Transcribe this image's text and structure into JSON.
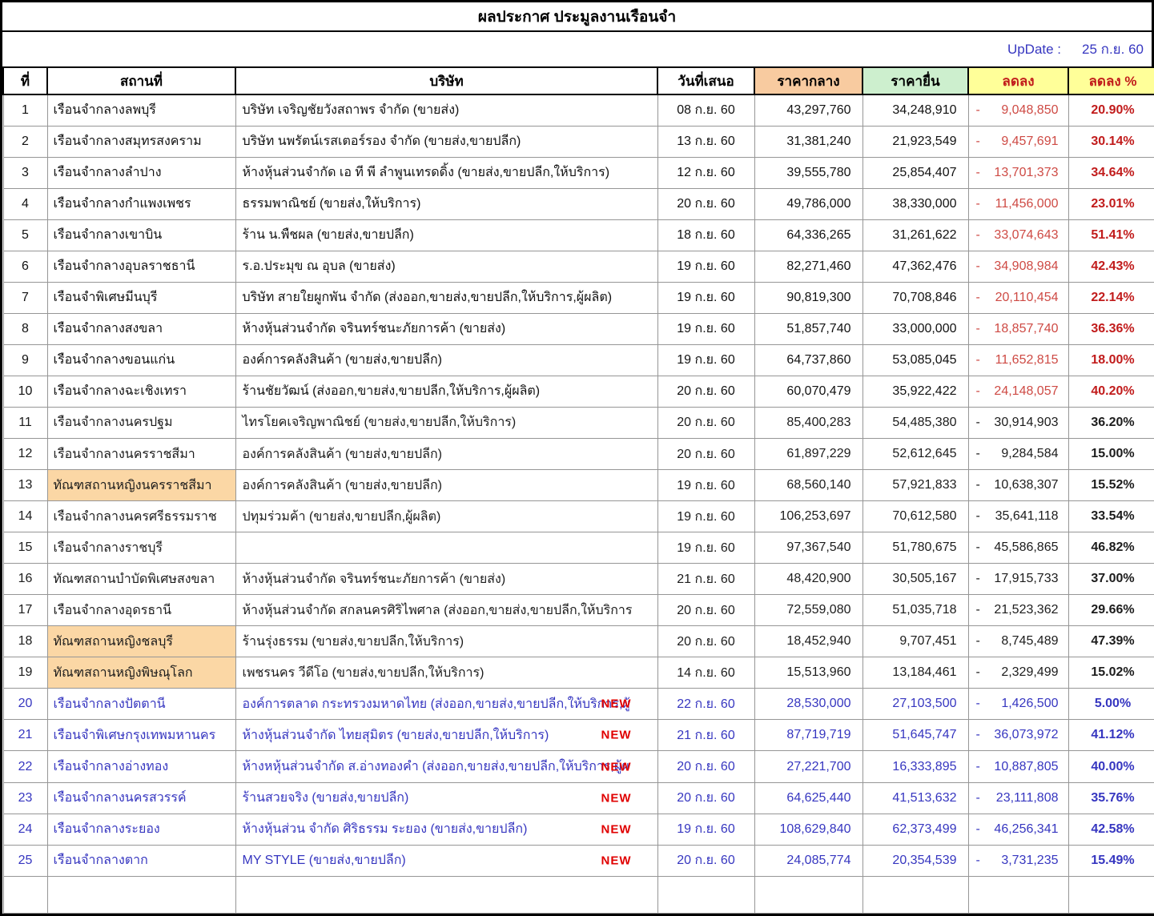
{
  "title": "ผลประกาศ ประมูลงานเรือนจำ",
  "update": {
    "label": "UpDate :",
    "value": "25 ก.ย. 60"
  },
  "labels": {
    "new_badge": "NEW"
  },
  "columns": [
    "ที่",
    "สถานที่",
    "บริษัท",
    "วันที่เสนอ",
    "ราคากลาง",
    "ราคายื่น",
    "ลดลง",
    "ลดลง %"
  ],
  "colors": {
    "mid-header-bg": "#F8CBA0",
    "bid-header-bg": "#CDEFCE",
    "dec-header-bg": "#FFFF99",
    "highlight-bg": "#FBD7A5",
    "red-val": "#CE4A44",
    "red-pct": "#C11B1B",
    "blue-text": "#3636C0",
    "new-red": "#E00000"
  },
  "rows": [
    {
      "no": "1",
      "place": "เรือนจำกลางลพบุรี",
      "highlight": false,
      "company": "บริษัท เจริญชัยวังสถาพร จำกัด (ขายส่ง)",
      "new": false,
      "date": "08 ก.ย. 60",
      "mid": "43,297,760",
      "bid": "34,248,910",
      "dash": "-",
      "dec": "9,048,850",
      "pct": "20.90%",
      "style": "red"
    },
    {
      "no": "2",
      "place": "เรือนจำกลางสมุทรสงคราม",
      "highlight": false,
      "company": "บริษัท นพรัตน์เรสเตอร์รอง จำกัด (ขายส่ง,ขายปลีก)",
      "new": false,
      "date": "13 ก.ย. 60",
      "mid": "31,381,240",
      "bid": "21,923,549",
      "dash": "-",
      "dec": "9,457,691",
      "pct": "30.14%",
      "style": "red"
    },
    {
      "no": "3",
      "place": "เรือนจำกลางลำปาง",
      "highlight": false,
      "company": "ห้างหุ้นส่วนจำกัด เอ ที พี ลำพูนเทรดดิ้ง (ขายส่ง,ขายปลีก,ให้บริการ)",
      "new": false,
      "date": "12 ก.ย. 60",
      "mid": "39,555,780",
      "bid": "25,854,407",
      "dash": "-",
      "dec": "13,701,373",
      "pct": "34.64%",
      "style": "red"
    },
    {
      "no": "4",
      "place": "เรือนจำกลางกำแพงเพชร",
      "highlight": false,
      "company": "ธรรมพาณิชย์ (ขายส่ง,ให้บริการ)",
      "new": false,
      "date": "20 ก.ย. 60",
      "mid": "49,786,000",
      "bid": "38,330,000",
      "dash": "-",
      "dec": "11,456,000",
      "pct": "23.01%",
      "style": "red"
    },
    {
      "no": "5",
      "place": "เรือนจำกลางเขาบิน",
      "highlight": false,
      "company": "ร้าน น.พืชผล (ขายส่ง,ขายปลีก)",
      "new": false,
      "date": "18 ก.ย. 60",
      "mid": "64,336,265",
      "bid": "31,261,622",
      "dash": "-",
      "dec": "33,074,643",
      "pct": "51.41%",
      "style": "red"
    },
    {
      "no": "6",
      "place": "เรือนจำกลางอุบลราชธานี",
      "highlight": false,
      "company": "ร.อ.ประมุข ณ อุบล (ขายส่ง)",
      "new": false,
      "date": "19 ก.ย. 60",
      "mid": "82,271,460",
      "bid": "47,362,476",
      "dash": "-",
      "dec": "34,908,984",
      "pct": "42.43%",
      "style": "red"
    },
    {
      "no": "7",
      "place": "เรือนจำพิเศษมีนบุรี",
      "highlight": false,
      "company": "บริษัท สายใยผูกพัน จำกัด (ส่งออก,ขายส่ง,ขายปลีก,ให้บริการ,ผู้ผลิต)",
      "new": false,
      "date": "19 ก.ย. 60",
      "mid": "90,819,300",
      "bid": "70,708,846",
      "dash": "-",
      "dec": "20,110,454",
      "pct": "22.14%",
      "style": "red"
    },
    {
      "no": "8",
      "place": "เรือนจำกลางสงขลา",
      "highlight": false,
      "company": "ห้างหุ้นส่วนจำกัด จรินทร์ชนะภัยการค้า (ขายส่ง)",
      "new": false,
      "date": "19 ก.ย. 60",
      "mid": "51,857,740",
      "bid": "33,000,000",
      "dash": "-",
      "dec": "18,857,740",
      "pct": "36.36%",
      "style": "red"
    },
    {
      "no": "9",
      "place": "เรือนจำกลางขอนแก่น",
      "highlight": false,
      "company": "องค์การคลังสินค้า (ขายส่ง,ขายปลีก)",
      "new": false,
      "date": "19 ก.ย. 60",
      "mid": "64,737,860",
      "bid": "53,085,045",
      "dash": "-",
      "dec": "11,652,815",
      "pct": "18.00%",
      "style": "red"
    },
    {
      "no": "10",
      "place": "เรือนจำกลางฉะเชิงเทรา",
      "highlight": false,
      "company": "ร้านชัยวัฒน์ (ส่งออก,ขายส่ง,ขายปลีก,ให้บริการ,ผู้ผลิต)",
      "new": false,
      "date": "20 ก.ย. 60",
      "mid": "60,070,479",
      "bid": "35,922,422",
      "dash": "-",
      "dec": "24,148,057",
      "pct": "40.20%",
      "style": "red"
    },
    {
      "no": "11",
      "place": "เรือนจำกลางนครปฐม",
      "highlight": false,
      "company": "ไทรโยคเจริญพาณิชย์ (ขายส่ง,ขายปลีก,ให้บริการ)",
      "new": false,
      "date": "20 ก.ย. 60",
      "mid": "85,400,283",
      "bid": "54,485,380",
      "dash": "-",
      "dec": "30,914,903",
      "pct": "36.20%",
      "style": "black"
    },
    {
      "no": "12",
      "place": "เรือนจำกลางนครราชสีมา",
      "highlight": false,
      "company": "องค์การคลังสินค้า (ขายส่ง,ขายปลีก)",
      "new": false,
      "date": "20 ก.ย. 60",
      "mid": "61,897,229",
      "bid": "52,612,645",
      "dash": "-",
      "dec": "9,284,584",
      "pct": "15.00%",
      "style": "black"
    },
    {
      "no": "13",
      "place": "ทัณฑสถานหญิงนครราชสีมา",
      "highlight": true,
      "company": "องค์การคลังสินค้า (ขายส่ง,ขายปลีก)",
      "new": false,
      "date": "19 ก.ย. 60",
      "mid": "68,560,140",
      "bid": "57,921,833",
      "dash": "-",
      "dec": "10,638,307",
      "pct": "15.52%",
      "style": "black"
    },
    {
      "no": "14",
      "place": "เรือนจำกลางนครศรีธรรมราช",
      "highlight": false,
      "company": "ปทุมร่วมค้า (ขายส่ง,ขายปลีก,ผู้ผลิต)",
      "new": false,
      "date": "19 ก.ย. 60",
      "mid": "106,253,697",
      "bid": "70,612,580",
      "dash": "-",
      "dec": "35,641,118",
      "pct": "33.54%",
      "style": "black"
    },
    {
      "no": "15",
      "place": "เรือนจำกลางราชบุรี",
      "highlight": false,
      "company": "",
      "new": false,
      "date": "19 ก.ย. 60",
      "mid": "97,367,540",
      "bid": "51,780,675",
      "dash": "-",
      "dec": "45,586,865",
      "pct": "46.82%",
      "style": "black"
    },
    {
      "no": "16",
      "place": "ทัณฑสถานบำบัดพิเศษสงขลา",
      "highlight": false,
      "company": "ห้างหุ้นส่วนจำกัด จรินทร์ชนะภัยการค้า (ขายส่ง)",
      "new": false,
      "date": "21 ก.ย. 60",
      "mid": "48,420,900",
      "bid": "30,505,167",
      "dash": "-",
      "dec": "17,915,733",
      "pct": "37.00%",
      "style": "black"
    },
    {
      "no": "17",
      "place": "เรือนจำกลางอุดรธานี",
      "highlight": false,
      "company": "ห้างหุ้นส่วนจำกัด สกลนครศิริไพศาล (ส่งออก,ขายส่ง,ขายปลีก,ให้บริการ",
      "new": false,
      "date": "20 ก.ย. 60",
      "mid": "72,559,080",
      "bid": "51,035,718",
      "dash": "-",
      "dec": "21,523,362",
      "pct": "29.66%",
      "style": "black"
    },
    {
      "no": "18",
      "place": "ทัณฑสถานหญิงชลบุรี",
      "highlight": true,
      "company": "ร้านรุ่งธรรม (ขายส่ง,ขายปลีก,ให้บริการ)",
      "new": false,
      "date": "20 ก.ย. 60",
      "mid": "18,452,940",
      "bid": "9,707,451",
      "dash": "-",
      "dec": "8,745,489",
      "pct": "47.39%",
      "style": "black"
    },
    {
      "no": "19",
      "place": "ทัณฑสถานหญิงพิษณุโลก",
      "highlight": true,
      "company": "เพชรนคร วีดีโอ (ขายส่ง,ขายปลีก,ให้บริการ)",
      "new": false,
      "date": "14 ก.ย. 60",
      "mid": "15,513,960",
      "bid": "13,184,461",
      "dash": "-",
      "dec": "2,329,499",
      "pct": "15.02%",
      "style": "black"
    },
    {
      "no": "20",
      "place": "เรือนจำกลางปัตตานี",
      "highlight": false,
      "company": "องค์การตลาด กระทรวงมหาดไทย (ส่งออก,ขายส่ง,ขายปลีก,ให้บริการ,ผู้",
      "new": true,
      "date": "22 ก.ย. 60",
      "mid": "28,530,000",
      "bid": "27,103,500",
      "dash": "-",
      "dec": "1,426,500",
      "pct": "5.00%",
      "style": "blue"
    },
    {
      "no": "21",
      "place": "เรือนจำพิเศษกรุงเทพมหานคร",
      "highlight": false,
      "company": "ห้างหุ้นส่วนจำกัด ไทยสุมิตร (ขายส่ง,ขายปลีก,ให้บริการ)",
      "new": true,
      "date": "21 ก.ย. 60",
      "mid": "87,719,719",
      "bid": "51,645,747",
      "dash": "-",
      "dec": "36,073,972",
      "pct": "41.12%",
      "style": "blue"
    },
    {
      "no": "22",
      "place": "เรือนจำกลางอ่างทอง",
      "highlight": false,
      "company": "ห้างหหุ้นส่วนจำกัด ส.อ่างทองคำ (ส่งออก,ขายส่ง,ขายปลีก,ให้บริการ,ผู้ผ",
      "new": true,
      "date": "20 ก.ย. 60",
      "mid": "27,221,700",
      "bid": "16,333,895",
      "dash": "-",
      "dec": "10,887,805",
      "pct": "40.00%",
      "style": "blue"
    },
    {
      "no": "23",
      "place": "เรือนจำกลางนครสวรรค์",
      "highlight": false,
      "company": "ร้านสวยจริง (ขายส่ง,ขายปลีก)",
      "new": true,
      "date": "20 ก.ย. 60",
      "mid": "64,625,440",
      "bid": "41,513,632",
      "dash": "-",
      "dec": "23,111,808",
      "pct": "35.76%",
      "style": "blue"
    },
    {
      "no": "24",
      "place": "เรือนจำกลางระยอง",
      "highlight": false,
      "company": "ห้างหุ้นส่วน จำกัด ศิริธรรม ระยอง (ขายส่ง,ขายปลีก)",
      "new": true,
      "date": "19 ก.ย. 60",
      "mid": "108,629,840",
      "bid": "62,373,499",
      "dash": "-",
      "dec": "46,256,341",
      "pct": "42.58%",
      "style": "blue"
    },
    {
      "no": "25",
      "place": "เรือนจำกลางตาก",
      "highlight": false,
      "company": "MY STYLE (ขายส่ง,ขายปลีก)",
      "new": true,
      "date": "20 ก.ย. 60",
      "mid": "24,085,774",
      "bid": "20,354,539",
      "dash": "-",
      "dec": "3,731,235",
      "pct": "15.49%",
      "style": "blue"
    },
    {
      "no": "",
      "place": "",
      "highlight": false,
      "company": "",
      "new": false,
      "date": "",
      "mid": "",
      "bid": "",
      "dash": "",
      "dec": "",
      "pct": "",
      "style": "black",
      "empty": true
    }
  ]
}
